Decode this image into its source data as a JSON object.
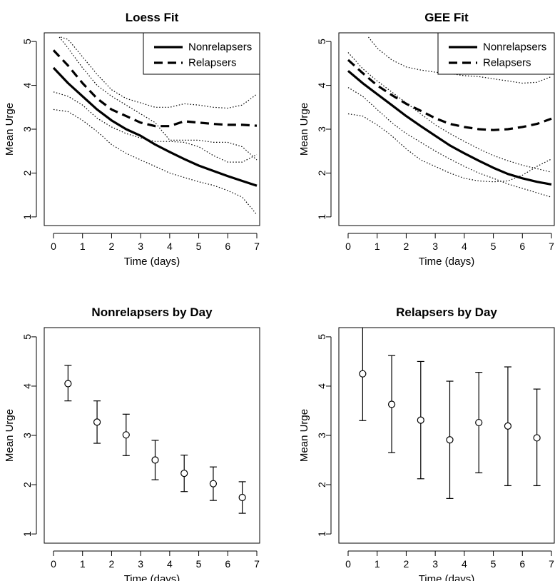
{
  "chart_data": [
    {
      "type": "line",
      "title": "Loess Fit",
      "xlabel": "Time (days)",
      "ylabel": "Mean Urge",
      "xlim": [
        0,
        7
      ],
      "ylim": [
        0.9,
        5.1
      ],
      "xticks": [
        "0",
        "1",
        "2",
        "3",
        "4",
        "5",
        "6",
        "7"
      ],
      "yticks": [
        "1",
        "2",
        "3",
        "4",
        "5"
      ],
      "legend": {
        "position": "top-right",
        "entries": [
          "Nonrelapsers",
          "Relapsers"
        ]
      },
      "series": [
        {
          "name": "Nonrelapsers",
          "style": "solid",
          "x": [
            0,
            0.5,
            1,
            1.5,
            2,
            2.5,
            3,
            3.5,
            4,
            4.5,
            5,
            5.5,
            6,
            6.5,
            7
          ],
          "y": [
            4.4,
            4.05,
            3.75,
            3.45,
            3.2,
            3.0,
            2.85,
            2.65,
            2.48,
            2.32,
            2.17,
            2.05,
            1.93,
            1.82,
            1.71
          ]
        },
        {
          "name": "Relapsers",
          "style": "dashed",
          "x": [
            0,
            0.5,
            1,
            1.5,
            2,
            2.5,
            3,
            3.5,
            4,
            4.5,
            5,
            5.5,
            6,
            6.5,
            7
          ],
          "y": [
            4.8,
            4.45,
            4.05,
            3.7,
            3.45,
            3.3,
            3.15,
            3.07,
            3.07,
            3.18,
            3.15,
            3.12,
            3.1,
            3.1,
            3.08
          ]
        }
      ],
      "bands": [
        {
          "style": "dotted",
          "x": [
            0,
            0.5,
            1,
            1.5,
            2,
            2.5,
            3,
            3.5,
            4,
            4.5,
            5,
            5.5,
            6,
            6.5,
            7
          ],
          "y": [
            3.45,
            3.4,
            3.2,
            2.95,
            2.65,
            2.45,
            2.3,
            2.15,
            2.0,
            1.9,
            1.8,
            1.72,
            1.6,
            1.45,
            1.05
          ]
        },
        {
          "style": "dotted",
          "x": [
            0,
            0.5,
            1,
            1.5,
            2,
            2.5,
            3,
            3.5,
            4,
            4.5,
            5,
            5.5,
            6,
            6.5,
            7
          ],
          "y": [
            3.85,
            3.75,
            3.55,
            3.25,
            3.05,
            2.9,
            2.8,
            2.72,
            2.72,
            2.7,
            2.6,
            2.4,
            2.25,
            2.25,
            2.42
          ]
        },
        {
          "style": "dotted",
          "x": [
            0.2,
            0.5,
            1,
            1.5,
            2,
            2.5,
            3,
            3.5,
            4,
            4.5,
            5,
            5.5,
            6,
            6.5,
            7
          ],
          "y": [
            5.1,
            4.85,
            4.4,
            4.0,
            3.75,
            3.55,
            3.35,
            3.15,
            2.75,
            2.75,
            2.75,
            2.7,
            2.7,
            2.6,
            2.3
          ]
        },
        {
          "style": "dotted",
          "x": [
            0.25,
            0.5,
            1,
            1.5,
            2,
            2.5,
            3,
            3.5,
            4,
            4.5,
            5,
            5.5,
            6,
            6.5,
            7
          ],
          "y": [
            5.1,
            5.05,
            4.65,
            4.25,
            3.9,
            3.7,
            3.6,
            3.5,
            3.5,
            3.58,
            3.55,
            3.5,
            3.48,
            3.55,
            3.8
          ]
        }
      ]
    },
    {
      "type": "line",
      "title": "GEE Fit",
      "xlabel": "Time (days)",
      "ylabel": "Mean Urge",
      "xlim": [
        0,
        7
      ],
      "ylim": [
        0.9,
        5.1
      ],
      "xticks": [
        "0",
        "1",
        "2",
        "3",
        "4",
        "5",
        "6",
        "7"
      ],
      "yticks": [
        "1",
        "2",
        "3",
        "4",
        "5"
      ],
      "legend": {
        "position": "top-right",
        "entries": [
          "Nonrelapsers",
          "Relapsers"
        ]
      },
      "series": [
        {
          "name": "Nonrelapsers",
          "style": "solid",
          "x": [
            0,
            0.5,
            1,
            1.5,
            2,
            2.5,
            3,
            3.5,
            4,
            4.5,
            5,
            5.5,
            6,
            6.5,
            7
          ],
          "y": [
            4.33,
            4.05,
            3.8,
            3.55,
            3.3,
            3.07,
            2.85,
            2.63,
            2.45,
            2.28,
            2.12,
            1.98,
            1.88,
            1.8,
            1.74
          ]
        },
        {
          "name": "Relapsers",
          "style": "dashed",
          "x": [
            0,
            0.5,
            1,
            1.5,
            2,
            2.5,
            3,
            3.5,
            4,
            4.5,
            5,
            5.5,
            6,
            6.5,
            7
          ],
          "y": [
            4.58,
            4.28,
            4.0,
            3.78,
            3.58,
            3.42,
            3.25,
            3.12,
            3.05,
            3.0,
            2.98,
            3.0,
            3.05,
            3.12,
            3.24
          ]
        }
      ],
      "bands": [
        {
          "style": "dotted",
          "x": [
            0,
            0.5,
            1,
            1.5,
            2,
            2.5,
            3,
            3.5,
            4,
            4.5,
            5,
            5.5,
            6,
            6.5,
            7
          ],
          "y": [
            3.35,
            3.3,
            3.1,
            2.85,
            2.55,
            2.3,
            2.15,
            2.0,
            1.88,
            1.82,
            1.8,
            1.82,
            1.95,
            2.15,
            2.32
          ]
        },
        {
          "style": "dotted",
          "x": [
            0,
            0.5,
            1,
            1.5,
            2,
            2.5,
            3,
            3.5,
            4,
            4.5,
            5,
            5.5,
            6,
            6.5,
            7
          ],
          "y": [
            3.95,
            3.75,
            3.45,
            3.15,
            2.9,
            2.7,
            2.5,
            2.32,
            2.15,
            2.0,
            1.88,
            1.75,
            1.65,
            1.55,
            1.45
          ]
        },
        {
          "style": "dotted",
          "x": [
            0,
            0.5,
            1,
            1.5,
            2,
            2.5,
            3,
            3.5,
            4,
            4.5,
            5,
            5.5,
            6,
            6.5,
            7
          ],
          "y": [
            4.75,
            4.38,
            4.1,
            3.85,
            3.6,
            3.35,
            3.1,
            2.9,
            2.72,
            2.55,
            2.4,
            2.28,
            2.18,
            2.1,
            2.02
          ]
        },
        {
          "style": "dotted",
          "x": [
            0.7,
            1,
            1.5,
            2,
            2.5,
            3,
            3.5,
            4,
            4.5,
            5,
            5.5,
            6,
            6.5,
            7
          ],
          "y": [
            5.1,
            4.85,
            4.58,
            4.42,
            4.35,
            4.3,
            4.27,
            4.22,
            4.2,
            4.15,
            4.1,
            4.05,
            4.07,
            4.2
          ]
        }
      ]
    },
    {
      "type": "scatter",
      "title": "Nonrelapsers by Day",
      "xlabel": "Time (days)",
      "ylabel": "Mean Urge",
      "xlim": [
        0,
        7
      ],
      "ylim": [
        0.9,
        5.1
      ],
      "xticks": [
        "0",
        "1",
        "2",
        "3",
        "4",
        "5",
        "6",
        "7"
      ],
      "yticks": [
        "1",
        "2",
        "3",
        "4",
        "5"
      ],
      "points": [
        {
          "x": 0.5,
          "y": 4.05,
          "low": 3.7,
          "high": 4.42
        },
        {
          "x": 1.5,
          "y": 3.27,
          "low": 2.84,
          "high": 3.7
        },
        {
          "x": 2.5,
          "y": 3.01,
          "low": 2.59,
          "high": 3.43
        },
        {
          "x": 3.5,
          "y": 2.5,
          "low": 2.1,
          "high": 2.9
        },
        {
          "x": 4.5,
          "y": 2.23,
          "low": 1.86,
          "high": 2.6
        },
        {
          "x": 5.5,
          "y": 2.02,
          "low": 1.68,
          "high": 2.36
        },
        {
          "x": 6.5,
          "y": 1.74,
          "low": 1.42,
          "high": 2.06
        }
      ]
    },
    {
      "type": "scatter",
      "title": "Relapsers by Day",
      "xlabel": "Time (days)",
      "ylabel": "Mean Urge",
      "xlim": [
        0,
        7
      ],
      "ylim": [
        0.9,
        5.1
      ],
      "xticks": [
        "0",
        "1",
        "2",
        "3",
        "4",
        "5",
        "6",
        "7"
      ],
      "yticks": [
        "1",
        "2",
        "3",
        "4",
        "5"
      ],
      "points": [
        {
          "x": 0.5,
          "y": 4.25,
          "low": 3.3,
          "high": 5.2
        },
        {
          "x": 1.5,
          "y": 3.63,
          "low": 2.65,
          "high": 4.62
        },
        {
          "x": 2.5,
          "y": 3.31,
          "low": 2.12,
          "high": 4.5
        },
        {
          "x": 3.5,
          "y": 2.91,
          "low": 1.72,
          "high": 4.1
        },
        {
          "x": 4.5,
          "y": 3.26,
          "low": 2.24,
          "high": 4.28
        },
        {
          "x": 5.5,
          "y": 3.19,
          "low": 1.98,
          "high": 4.39
        },
        {
          "x": 6.5,
          "y": 2.95,
          "low": 1.98,
          "high": 3.94
        }
      ]
    }
  ]
}
